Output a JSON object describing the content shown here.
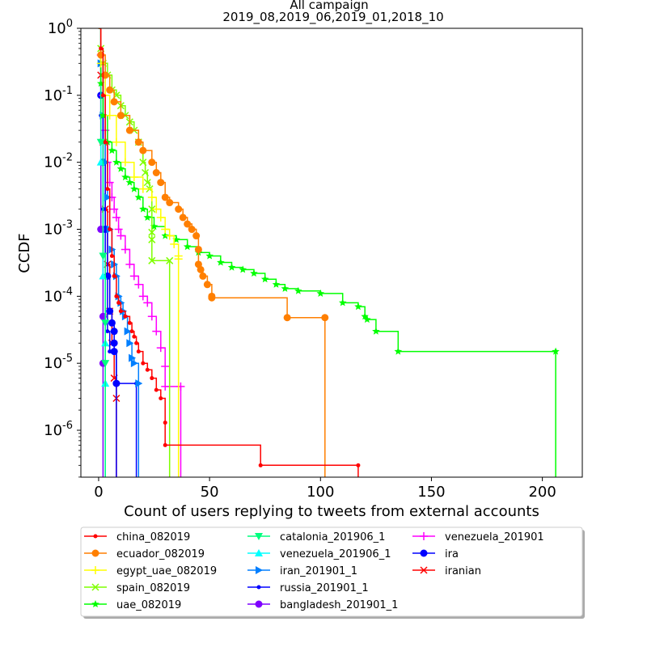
{
  "chart_data": {
    "type": "line",
    "title": "All campaign",
    "subtitle": "2019_08,2019_06,2019_01,2018_10",
    "xlabel": "Count of users replying to tweets from external accounts",
    "ylabel": "CCDF",
    "xlim": [
      -8,
      218
    ],
    "ylim_log10": [
      -6.7,
      0
    ],
    "yscale": "log",
    "x_ticks": [
      0,
      50,
      100,
      150,
      200
    ],
    "x_tick_labels": [
      "0",
      "50",
      "100",
      "150",
      "200"
    ],
    "y_ticks_log10": [
      0,
      -1,
      -2,
      -3,
      -4,
      -5,
      -6
    ],
    "y_tick_labels": [
      {
        "base": "1",
        "exp": "0"
      },
      {
        "base": "10",
        "exp": "-1"
      },
      {
        "base": "10",
        "exp": "-2"
      },
      {
        "base": "10",
        "exp": "-3"
      },
      {
        "base": "10",
        "exp": "-4"
      },
      {
        "base": "10",
        "exp": "-5"
      },
      {
        "base": "10",
        "exp": "-6"
      }
    ],
    "legend_position": "below-center",
    "series": [
      {
        "name": "china_082019",
        "color": "#ff0000",
        "marker": "dot",
        "points": [
          [
            0,
            1
          ],
          [
            1,
            0.5
          ],
          [
            2,
            0.1
          ],
          [
            3,
            0.02
          ],
          [
            4,
            0.004
          ],
          [
            5,
            0.001
          ],
          [
            6,
            0.0004
          ],
          [
            7,
            0.0002
          ],
          [
            8,
            0.0001
          ],
          [
            9,
            8e-05
          ],
          [
            10,
            6e-05
          ],
          [
            12,
            5e-05
          ],
          [
            14,
            4e-05
          ],
          [
            15,
            3e-05
          ],
          [
            16,
            2.5e-05
          ],
          [
            17,
            2e-05
          ],
          [
            18,
            1.5e-05
          ],
          [
            20,
            1e-05
          ],
          [
            22,
            8e-06
          ],
          [
            24,
            6e-06
          ],
          [
            26,
            4e-06
          ],
          [
            28,
            3e-06
          ],
          [
            30,
            1.3e-06
          ],
          [
            30,
            6e-07
          ],
          [
            73,
            3e-07
          ],
          [
            117,
            3e-07
          ]
        ]
      },
      {
        "name": "ecuador_082019",
        "color": "#ff7f00",
        "marker": "circle",
        "points": [
          [
            0,
            1
          ],
          [
            1,
            0.4
          ],
          [
            3,
            0.2
          ],
          [
            5,
            0.12
          ],
          [
            7,
            0.08
          ],
          [
            10,
            0.05
          ],
          [
            14,
            0.03
          ],
          [
            18,
            0.02
          ],
          [
            20,
            0.015
          ],
          [
            24,
            0.01
          ],
          [
            26,
            0.007
          ],
          [
            28,
            0.005
          ],
          [
            30,
            0.003
          ],
          [
            32,
            0.0025
          ],
          [
            36,
            0.002
          ],
          [
            38,
            0.0015
          ],
          [
            40,
            0.0012
          ],
          [
            42,
            0.001
          ],
          [
            44,
            0.0008
          ],
          [
            45,
            0.0005
          ],
          [
            45,
            0.0003
          ],
          [
            46,
            0.00025
          ],
          [
            47,
            0.0002
          ],
          [
            49,
            0.00015
          ],
          [
            51,
            0.0001
          ],
          [
            51,
            9.5e-05
          ],
          [
            85,
            4.8e-05
          ],
          [
            102,
            4.8e-05
          ]
        ]
      },
      {
        "name": "egypt_uae_082019",
        "color": "#ffff00",
        "marker": "plus",
        "points": [
          [
            0,
            1
          ],
          [
            1,
            0.3
          ],
          [
            3,
            0.1
          ],
          [
            5,
            0.05
          ],
          [
            8,
            0.02
          ],
          [
            12,
            0.01
          ],
          [
            16,
            0.006
          ],
          [
            20,
            0.004
          ],
          [
            24,
            0.003
          ],
          [
            26,
            0.002
          ],
          [
            28,
            0.0015
          ],
          [
            30,
            0.001
          ],
          [
            32,
            0.0008
          ],
          [
            34,
            0.0006
          ],
          [
            36,
            0.0004
          ],
          [
            36,
            0.00036
          ]
        ]
      },
      {
        "name": "spain_082019",
        "color": "#7fff00",
        "marker": "x",
        "points": [
          [
            0,
            1
          ],
          [
            1,
            0.5
          ],
          [
            2,
            0.3
          ],
          [
            4,
            0.2
          ],
          [
            6,
            0.12
          ],
          [
            8,
            0.1
          ],
          [
            10,
            0.07
          ],
          [
            12,
            0.05
          ],
          [
            14,
            0.04
          ],
          [
            16,
            0.03
          ],
          [
            18,
            0.02
          ],
          [
            20,
            0.01
          ],
          [
            21,
            0.007
          ],
          [
            22,
            0.005
          ],
          [
            23,
            0.004
          ],
          [
            24,
            0.002
          ],
          [
            24,
            0.0009
          ],
          [
            24,
            0.0007
          ],
          [
            24,
            0.00034
          ],
          [
            32,
            0.00034
          ]
        ]
      },
      {
        "name": "uae_082019",
        "color": "#00ff00",
        "marker": "star",
        "points": [
          [
            0,
            1
          ],
          [
            1,
            0.15
          ],
          [
            2,
            0.05
          ],
          [
            4,
            0.02
          ],
          [
            6,
            0.015
          ],
          [
            8,
            0.01
          ],
          [
            10,
            0.008
          ],
          [
            12,
            0.006
          ],
          [
            14,
            0.005
          ],
          [
            16,
            0.004
          ],
          [
            18,
            0.003
          ],
          [
            20,
            0.002
          ],
          [
            22,
            0.0015
          ],
          [
            25,
            0.0011
          ],
          [
            30,
            0.0008
          ],
          [
            35,
            0.0007
          ],
          [
            40,
            0.00055
          ],
          [
            45,
            0.00045
          ],
          [
            50,
            0.0004
          ],
          [
            55,
            0.00032
          ],
          [
            60,
            0.00027
          ],
          [
            65,
            0.00025
          ],
          [
            70,
            0.00022
          ],
          [
            75,
            0.00018
          ],
          [
            80,
            0.00015
          ],
          [
            84,
            0.00013
          ],
          [
            90,
            0.00012
          ],
          [
            100,
            0.00011
          ],
          [
            110,
            8e-05
          ],
          [
            117,
            7e-05
          ],
          [
            120,
            5e-05
          ],
          [
            121,
            4.5e-05
          ],
          [
            125,
            3e-05
          ],
          [
            135,
            1.5e-05
          ],
          [
            206,
            1.5e-05
          ]
        ]
      },
      {
        "name": "catalonia_201906_1",
        "color": "#00ff7f",
        "marker": "tri-down",
        "points": [
          [
            0,
            1
          ],
          [
            1,
            0.02
          ],
          [
            2,
            0.0004
          ],
          [
            3,
            4e-05
          ],
          [
            3,
            1e-05
          ]
        ]
      },
      {
        "name": "venezuela_201906_1",
        "color": "#00ffff",
        "marker": "tri-up",
        "points": [
          [
            0,
            1
          ],
          [
            1,
            0.01
          ],
          [
            2,
            0.0002
          ],
          [
            3,
            2e-05
          ],
          [
            3,
            5e-06
          ]
        ]
      },
      {
        "name": "iran_201901_1",
        "color": "#007fff",
        "marker": "tri-right",
        "points": [
          [
            0,
            1
          ],
          [
            1,
            0.3
          ],
          [
            2,
            0.05
          ],
          [
            3,
            0.01
          ],
          [
            4,
            0.003
          ],
          [
            5,
            0.001
          ],
          [
            6,
            0.0005
          ],
          [
            7,
            0.0003
          ],
          [
            8,
            0.0002
          ],
          [
            9,
            0.0001
          ],
          [
            10,
            8e-05
          ],
          [
            11,
            6e-05
          ],
          [
            12,
            5e-05
          ],
          [
            13,
            3e-05
          ],
          [
            14,
            2e-05
          ],
          [
            15,
            1.2e-05
          ],
          [
            16,
            1e-05
          ],
          [
            18,
            5e-06
          ]
        ]
      },
      {
        "name": "russia_201901_1",
        "color": "#0000ff",
        "marker": "dot",
        "points": [
          [
            0,
            1
          ],
          [
            1,
            0.05
          ],
          [
            2,
            0.002
          ],
          [
            3,
            0.0002
          ],
          [
            4,
            3e-05
          ],
          [
            5,
            1.5e-05
          ],
          [
            8,
            5e-06
          ],
          [
            17,
            5e-06
          ]
        ]
      },
      {
        "name": "bangladesh_201901_1",
        "color": "#7f00ff",
        "marker": "circle",
        "points": [
          [
            0,
            1
          ],
          [
            1,
            0.001
          ],
          [
            2,
            5e-05
          ],
          [
            2,
            1e-05
          ]
        ]
      },
      {
        "name": "venezuela_201901",
        "color": "#ff00ff",
        "marker": "plus",
        "points": [
          [
            0,
            1
          ],
          [
            1,
            0.4
          ],
          [
            2,
            0.1
          ],
          [
            3,
            0.03
          ],
          [
            4,
            0.01
          ],
          [
            5,
            0.005
          ],
          [
            6,
            0.003
          ],
          [
            7,
            0.002
          ],
          [
            8,
            0.0015
          ],
          [
            9,
            0.001
          ],
          [
            10,
            0.0008
          ],
          [
            12,
            0.0005
          ],
          [
            14,
            0.0003
          ],
          [
            16,
            0.0002
          ],
          [
            18,
            0.00015
          ],
          [
            20,
            0.0001
          ],
          [
            22,
            8e-05
          ],
          [
            24,
            5e-05
          ],
          [
            26,
            3e-05
          ],
          [
            28,
            1.7e-05
          ],
          [
            30,
            9e-06
          ],
          [
            30,
            4.5e-06
          ],
          [
            37,
            4.5e-06
          ]
        ]
      },
      {
        "name": "ira",
        "color": "#0000ff",
        "marker": "circle",
        "points": [
          [
            0,
            1
          ],
          [
            1,
            0.1
          ],
          [
            2,
            0.01
          ],
          [
            3,
            0.001
          ],
          [
            4,
            0.0002
          ],
          [
            5,
            6e-05
          ],
          [
            6,
            4e-05
          ],
          [
            7,
            3e-05
          ],
          [
            7,
            2e-05
          ],
          [
            7,
            1.5e-05
          ],
          [
            8,
            5e-06
          ]
        ]
      },
      {
        "name": "iranian",
        "color": "#ff0000",
        "marker": "x",
        "points": [
          [
            0,
            1
          ],
          [
            1,
            0.2
          ],
          [
            2,
            0.02
          ],
          [
            3,
            0.002
          ],
          [
            4,
            0.0003
          ],
          [
            5,
            6e-05
          ],
          [
            6,
            2e-05
          ],
          [
            7,
            6e-06
          ],
          [
            8,
            3e-06
          ]
        ]
      }
    ]
  }
}
